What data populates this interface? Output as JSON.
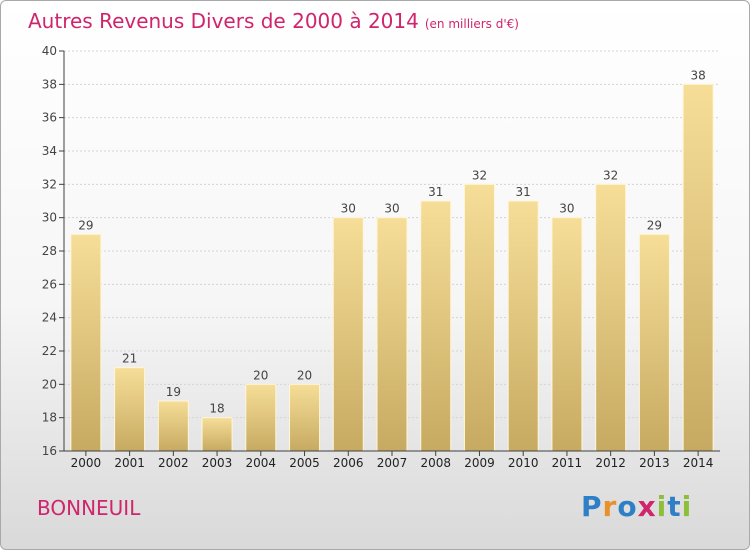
{
  "title": "Autres Revenus Divers de 2000 à 2014",
  "title_unit": "(en milliers d'€)",
  "location": "BONNEUIL",
  "brand": {
    "letters": [
      "P",
      "r",
      "o",
      "x",
      "i",
      "t",
      "i"
    ],
    "colors": [
      "#2e7fc6",
      "#e8902a",
      "#2e7fc6",
      "#d0246c",
      "#8cbf3a",
      "#2e7fc6",
      "#8cbf3a"
    ]
  },
  "colors": {
    "title": "#d0246c",
    "bar_top": "#f6de98",
    "bar_bottom": "#c7aa62",
    "bar_border": "#fff6d8",
    "axis": "#404040"
  },
  "chart_data": {
    "type": "bar",
    "categories": [
      "2000",
      "2001",
      "2002",
      "2003",
      "2004",
      "2005",
      "2006",
      "2007",
      "2008",
      "2009",
      "2010",
      "2011",
      "2012",
      "2013",
      "2014"
    ],
    "values": [
      29,
      21,
      19,
      18,
      20,
      20,
      30,
      30,
      31,
      32,
      31,
      30,
      32,
      29,
      38
    ],
    "ylim": [
      16,
      40
    ],
    "yticks": [
      16,
      18,
      20,
      22,
      24,
      26,
      28,
      30,
      32,
      34,
      36,
      38,
      40
    ],
    "grid": true
  }
}
